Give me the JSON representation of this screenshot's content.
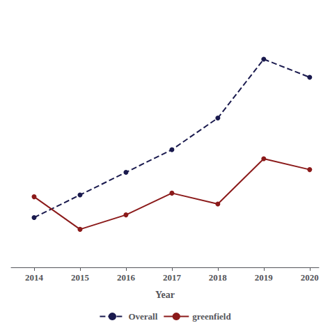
{
  "chart_data": {
    "type": "line",
    "x": [
      2014,
      2015,
      2016,
      2017,
      2018,
      2019,
      2020
    ],
    "series": [
      {
        "name": "Overall",
        "color": "#1a1a4e",
        "values": [
          55,
          80,
          105,
          130,
          165,
          230,
          210
        ],
        "line_style": "dashed",
        "marker": "circle"
      },
      {
        "name": "greenfield",
        "color": "#8b1a1a",
        "values": [
          78,
          42,
          58,
          82,
          70,
          120,
          108
        ],
        "line_style": "solid",
        "marker": "circle"
      }
    ],
    "xlabel": "Year",
    "xlim": [
      2013.5,
      2020.2
    ],
    "xticks": [
      2014,
      2015,
      2016,
      2017,
      2018,
      2019,
      2020
    ],
    "ylim": [
      0,
      280
    ],
    "tick_labels": "x",
    "grid": false,
    "legend": "bottom"
  }
}
